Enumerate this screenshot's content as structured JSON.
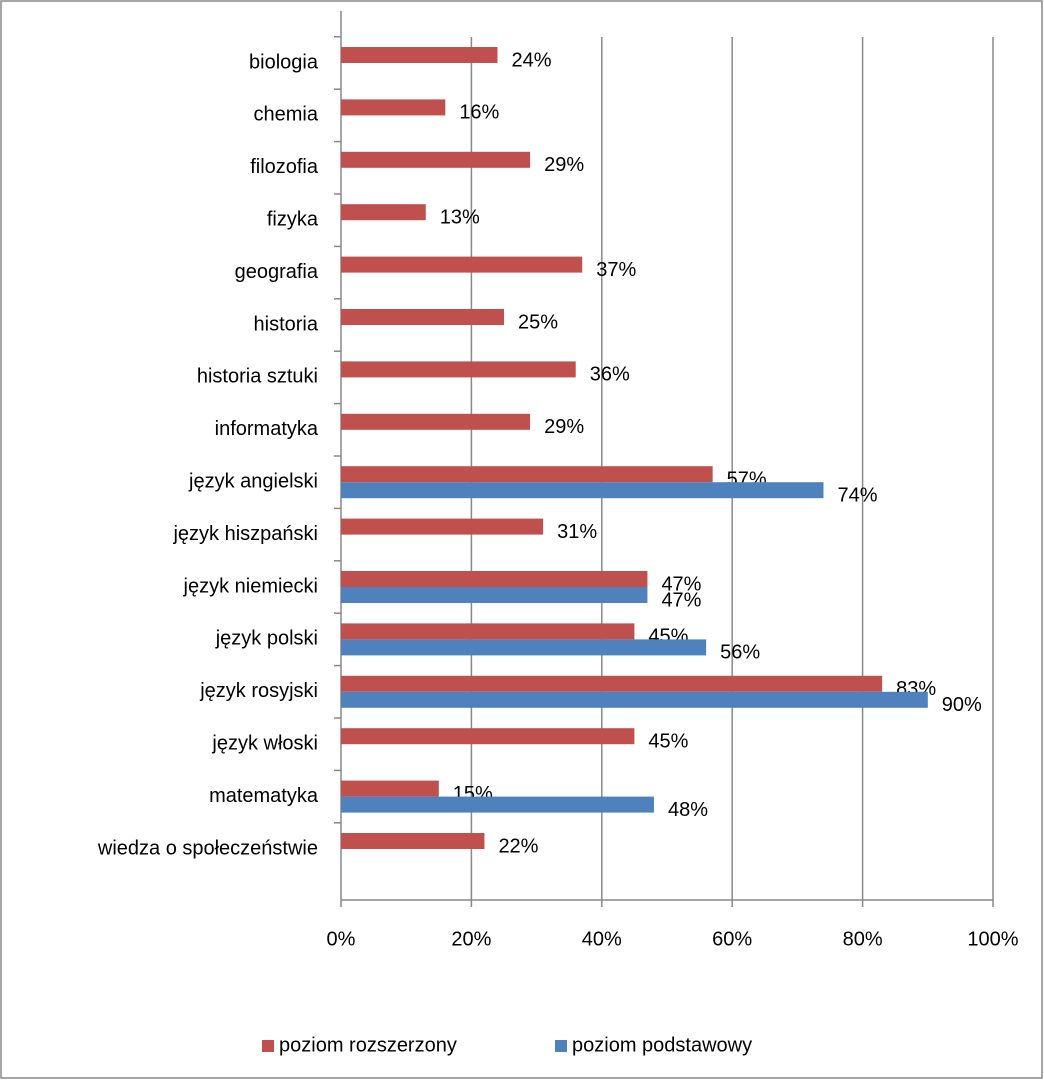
{
  "chart_data": {
    "type": "bar",
    "orientation": "horizontal",
    "categories": [
      "biologia",
      "chemia",
      "filozofia",
      "fizyka",
      "geografia",
      "historia",
      "historia sztuki",
      "informatyka",
      "język angielski",
      "język hiszpański",
      "język niemiecki",
      "język polski",
      "język rosyjski",
      "język włoski",
      "matematyka",
      "wiedza o społeczeństwie"
    ],
    "series": [
      {
        "name": "poziom rozszerzony",
        "color": "#c0504d",
        "values": [
          24,
          16,
          29,
          13,
          37,
          25,
          36,
          29,
          57,
          31,
          47,
          45,
          83,
          45,
          15,
          22
        ],
        "value_labels": [
          "24%",
          "16%",
          "29%",
          "13%",
          "37%",
          "25%",
          "36%",
          "29%",
          "57%",
          "31%",
          "47%",
          "45%",
          "83%",
          "45%",
          "15%",
          "22%"
        ]
      },
      {
        "name": "poziom podstawowy",
        "color": "#4f81bd",
        "values": [
          null,
          null,
          null,
          null,
          null,
          null,
          null,
          null,
          74,
          null,
          47,
          56,
          90,
          null,
          48,
          null
        ],
        "value_labels": [
          null,
          null,
          null,
          null,
          null,
          null,
          null,
          null,
          "74%",
          null,
          "47%",
          "56%",
          "90%",
          null,
          "48%",
          null
        ]
      }
    ],
    "xlim": [
      0,
      100
    ],
    "xticks": [
      {
        "value": 0,
        "label": "0%"
      },
      {
        "value": 20,
        "label": "20%"
      },
      {
        "value": 40,
        "label": "40%"
      },
      {
        "value": 60,
        "label": "60%"
      },
      {
        "value": 80,
        "label": "80%"
      },
      {
        "value": 100,
        "label": "100%"
      }
    ],
    "grid": true,
    "legend": "bottom"
  }
}
